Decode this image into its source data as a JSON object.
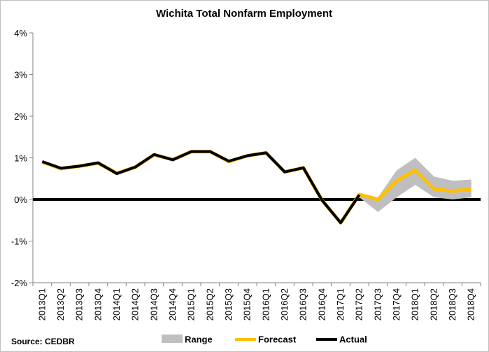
{
  "chart_data": {
    "type": "line",
    "title": "Wichita Total Nonfarm Employment",
    "source": "Source: CEDBR",
    "xlabel": "",
    "ylabel": "",
    "ylim": [
      -2,
      4
    ],
    "y_ticks": [
      -2,
      -1,
      0,
      1,
      2,
      3,
      4
    ],
    "y_tick_labels": [
      "-2%",
      "-1%",
      "0%",
      "1%",
      "2%",
      "3%",
      "4%"
    ],
    "grid": false,
    "legend_position": "bottom",
    "categories": [
      "2013Q1",
      "2013Q2",
      "2013Q3",
      "2013Q4",
      "2014Q1",
      "2014Q2",
      "2014Q3",
      "2014Q4",
      "2015Q1",
      "2015Q2",
      "2015Q3",
      "2015Q4",
      "2016Q1",
      "2016Q2",
      "2016Q3",
      "2016Q4",
      "2017Q1",
      "2017Q2",
      "2017Q3",
      "2017Q4",
      "2018Q1",
      "2018Q2",
      "2018Q3",
      "2018Q4"
    ],
    "series": [
      {
        "name": "Range",
        "kind": "band",
        "color": "#bfbfbf",
        "start_index": 17,
        "low": [
          0.05,
          -0.3,
          0.05,
          0.35,
          0.05,
          0.0,
          0.05
        ],
        "high": [
          0.15,
          0.05,
          0.7,
          1.0,
          0.55,
          0.45,
          0.48
        ]
      },
      {
        "name": "Forecast",
        "kind": "line",
        "color": "#ffc000",
        "values": [
          0.9,
          0.74,
          0.8,
          0.87,
          0.63,
          0.78,
          1.07,
          0.96,
          1.15,
          1.15,
          0.91,
          1.05,
          1.12,
          0.66,
          0.76,
          -0.02,
          -0.56,
          0.12,
          0.0,
          0.45,
          0.7,
          0.25,
          0.2,
          0.25
        ]
      },
      {
        "name": "Actual",
        "kind": "line",
        "color": "#000000",
        "values": [
          0.91,
          0.75,
          0.8,
          0.88,
          0.62,
          0.78,
          1.08,
          0.95,
          1.15,
          1.15,
          0.92,
          1.05,
          1.12,
          0.66,
          0.76,
          -0.02,
          -0.56,
          0.11,
          null,
          null,
          null,
          null,
          null,
          null
        ]
      }
    ]
  }
}
